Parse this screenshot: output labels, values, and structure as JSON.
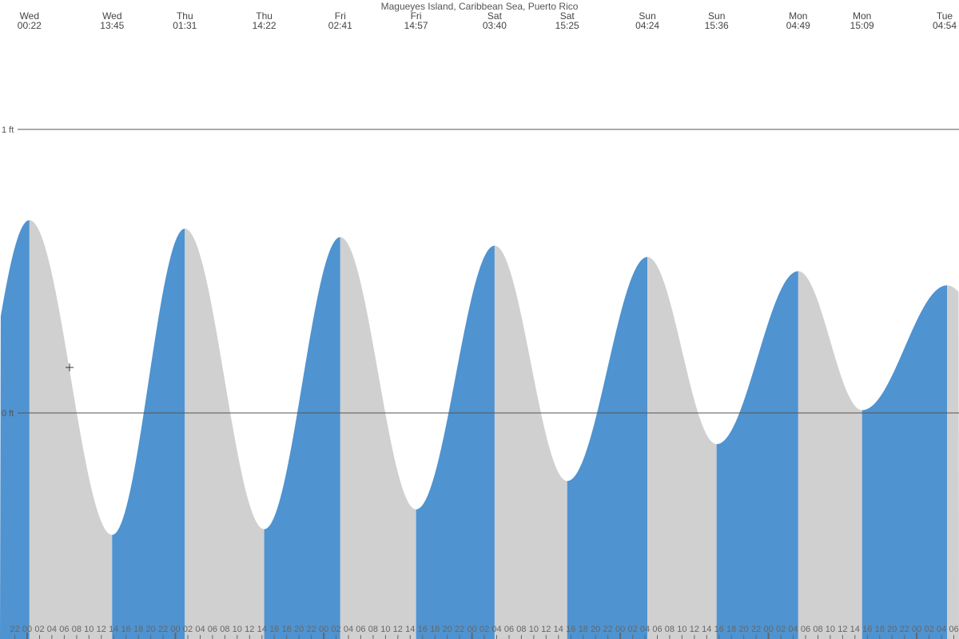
{
  "chart_data": {
    "type": "area",
    "title": "Magueyes Island, Caribbean Sea, Puerto Rico",
    "y_unit": "ft",
    "y_gridlines": [
      {
        "value": 1,
        "label": "1 ft"
      },
      {
        "value": 0,
        "label": "0 ft"
      }
    ],
    "colors": {
      "rising": "#4f93d0",
      "falling": "#d0d0d0",
      "grid": "#555555",
      "tick": "#666666"
    },
    "tide_events": [
      {
        "day": "Wed",
        "time": "00:22",
        "type": "high",
        "height": 0.68
      },
      {
        "day": "Wed",
        "time": "13:45",
        "type": "low",
        "height": -0.43
      },
      {
        "day": "Thu",
        "time": "01:31",
        "type": "high",
        "height": 0.65
      },
      {
        "day": "Thu",
        "time": "14:22",
        "type": "low",
        "height": -0.41
      },
      {
        "day": "Fri",
        "time": "02:41",
        "type": "high",
        "height": 0.62
      },
      {
        "day": "Fri",
        "time": "14:57",
        "type": "low",
        "height": -0.34
      },
      {
        "day": "Sat",
        "time": "03:40",
        "type": "high",
        "height": 0.59
      },
      {
        "day": "Sat",
        "time": "15:25",
        "type": "low",
        "height": -0.24
      },
      {
        "day": "Sun",
        "time": "04:24",
        "type": "high",
        "height": 0.55
      },
      {
        "day": "Sun",
        "time": "15:36",
        "type": "low",
        "height": -0.11
      },
      {
        "day": "Mon",
        "time": "04:49",
        "type": "high",
        "height": 0.5
      },
      {
        "day": "Mon",
        "time": "15:09",
        "type": "low",
        "height": 0.01
      },
      {
        "day": "Tue",
        "time": "04:54",
        "type": "high",
        "height": 0.45
      }
    ],
    "boundary_heights": {
      "start": 0.38,
      "end": 0.35
    },
    "hour_labels": [
      "22",
      "00",
      "02",
      "04",
      "06",
      "08",
      "10",
      "12",
      "14",
      "16",
      "18",
      "20",
      "22",
      "00",
      "02",
      "04",
      "06",
      "08",
      "10",
      "12",
      "14",
      "16",
      "18",
      "20",
      "22",
      "00",
      "02",
      "04",
      "06",
      "08",
      "10",
      "12",
      "14",
      "16",
      "18",
      "20",
      "22",
      "00",
      "02",
      "04",
      "06",
      "08",
      "10",
      "12",
      "14",
      "16",
      "18",
      "20",
      "22",
      "00",
      "02",
      "04",
      "06",
      "08",
      "10",
      "12",
      "14",
      "16",
      "18",
      "20",
      "22",
      "00",
      "02",
      "04",
      "06",
      "08",
      "10",
      "12",
      "14",
      "16",
      "18",
      "20",
      "22",
      "00",
      "02",
      "04",
      "06",
      "08",
      "10",
      "12",
      "14",
      "16",
      "18",
      "20",
      "22",
      "00",
      "02",
      "04",
      "06"
    ]
  }
}
